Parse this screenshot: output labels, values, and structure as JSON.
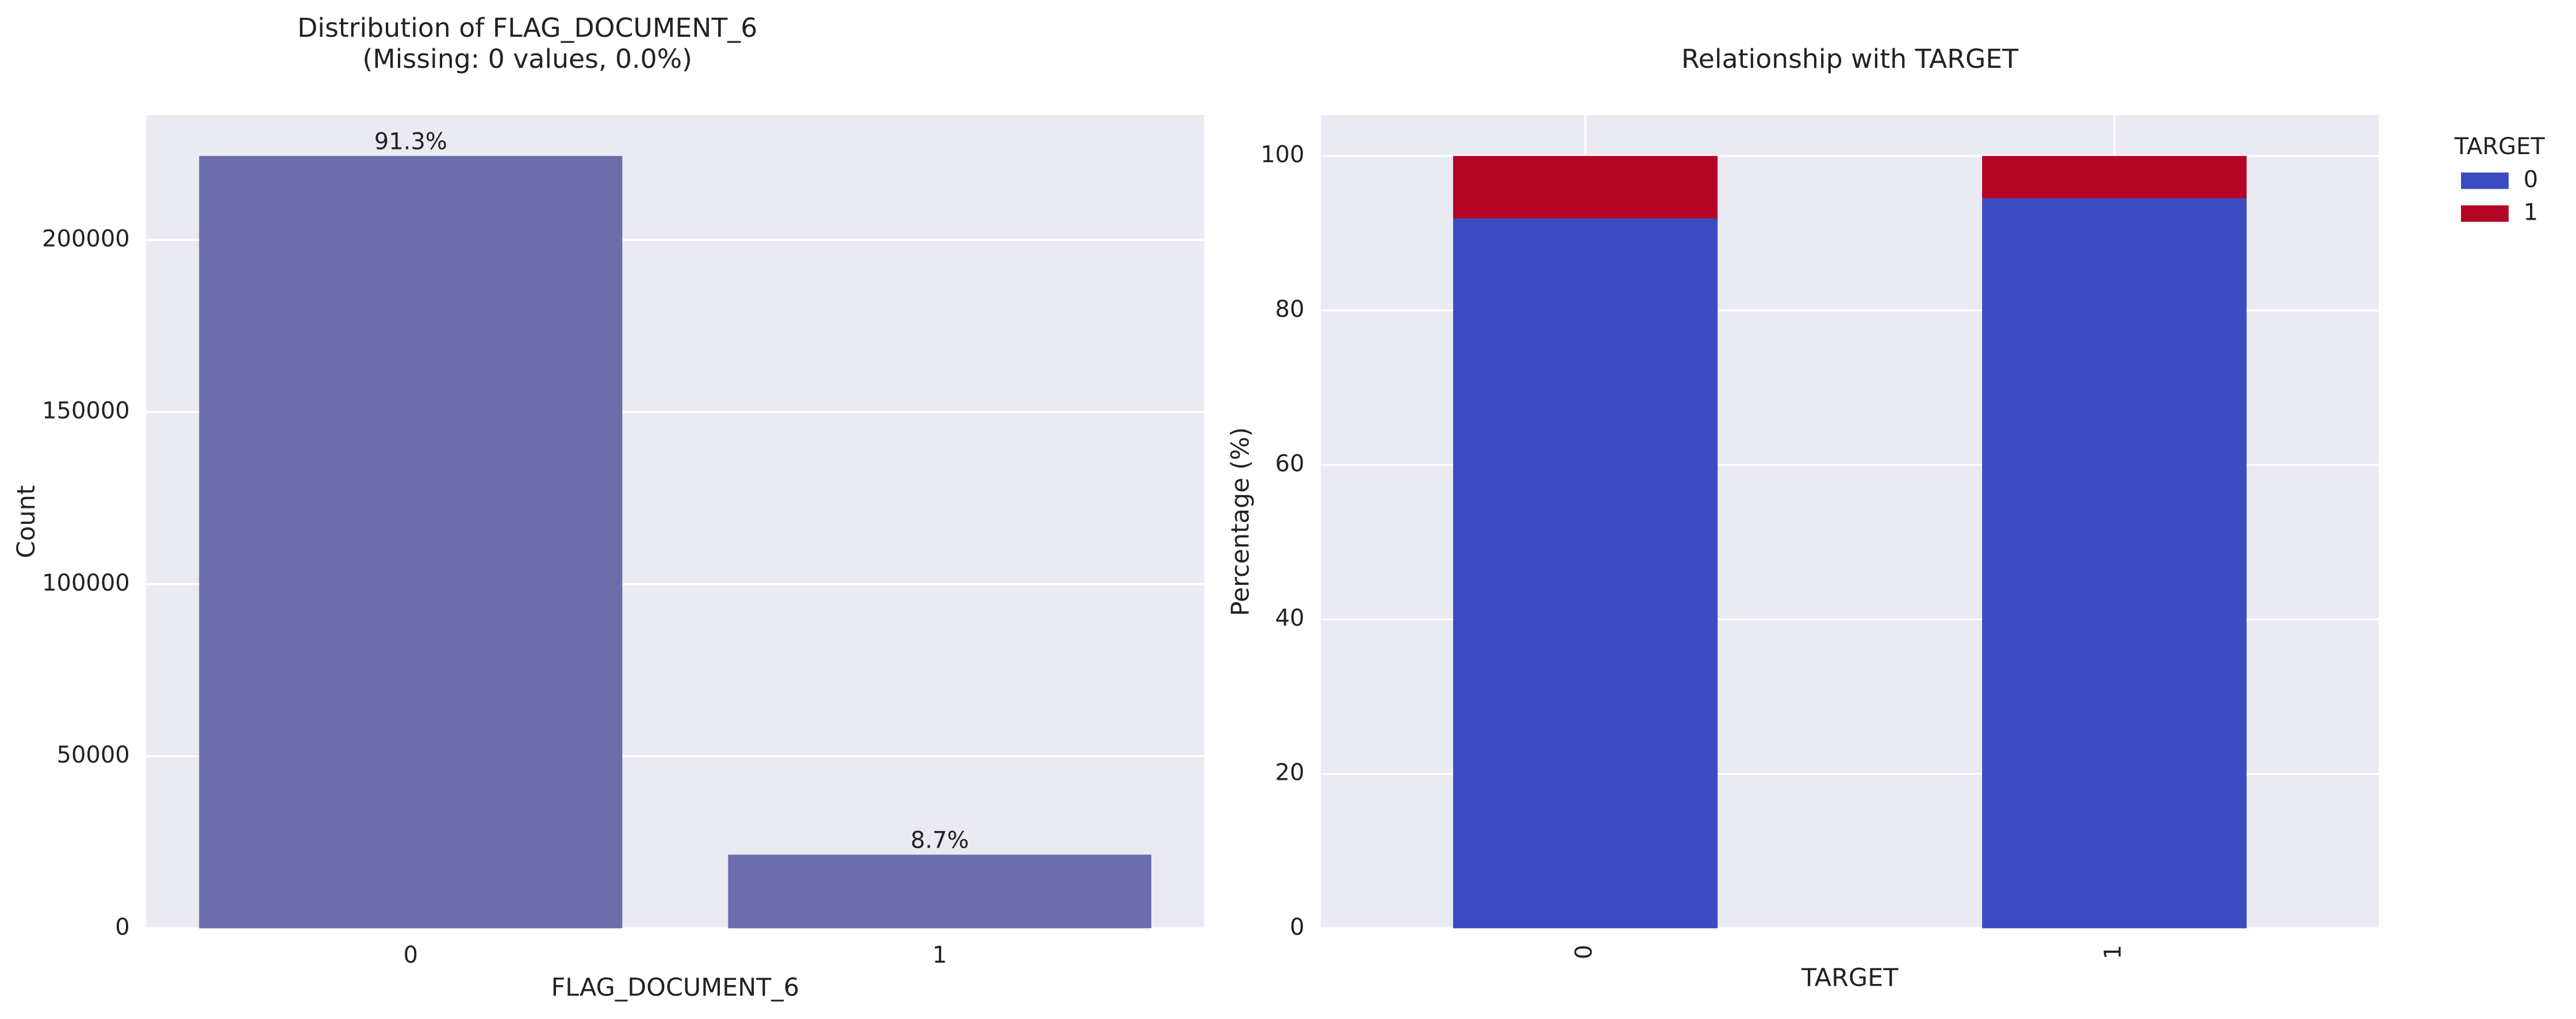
{
  "chart_data": [
    {
      "type": "bar",
      "title": "Distribution of FLAG_DOCUMENT_6",
      "subtitle": "(Missing: 0 values, 0.0%)",
      "xlabel": "FLAG_DOCUMENT_6",
      "ylabel": "Count",
      "categories": [
        "0",
        "1"
      ],
      "values": [
        224400,
        21400
      ],
      "value_labels": [
        "91.3%",
        "8.7%"
      ],
      "color": "#6a6aaa",
      "ylim": [
        0,
        236300
      ],
      "yticks": [
        0,
        50000,
        100000,
        150000,
        200000
      ],
      "grid": true
    },
    {
      "type": "stacked_bar",
      "title": "Relationship with TARGET",
      "xlabel": "TARGET",
      "ylabel": "Percentage (%)",
      "categories": [
        "0",
        "1"
      ],
      "legend_title": "TARGET",
      "legend": "outside-right",
      "series": [
        {
          "name": "0",
          "color": "#3b4cc0",
          "values": [
            91.9,
            94.5
          ]
        },
        {
          "name": "1",
          "color": "#b40426",
          "values": [
            8.1,
            5.5
          ]
        }
      ],
      "ylim": [
        0,
        105.3
      ],
      "yticks": [
        0,
        20,
        40,
        60,
        80,
        100
      ],
      "grid": true
    }
  ]
}
